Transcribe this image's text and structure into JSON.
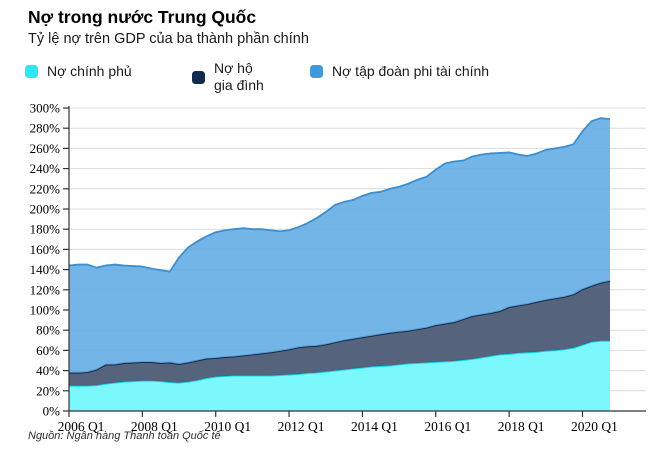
{
  "header": {
    "title": "Nợ trong nước Trung Quốc",
    "subtitle": "Tỷ lệ nợ trên GDP của ba thành phần chính"
  },
  "legend": {
    "items": [
      {
        "label": "Nợ chính phủ",
        "swatch_color": "#2de7f2"
      },
      {
        "label": "Nợ hộ\ngia đình",
        "swatch_color": "#132b4c"
      },
      {
        "label": "Nợ tập đoàn phi tài chính",
        "swatch_color": "#3f9adc"
      }
    ]
  },
  "footer": {
    "source": "Nguồn: Ngân hàng Thanh toán Quốc tế"
  },
  "colors": {
    "grid": "#dcdcdc",
    "axis": "#333333",
    "tick_label": "#000000"
  },
  "chart_data": {
    "type": "area",
    "stacked": true,
    "title": "Nợ trong nước Trung Quốc",
    "subtitle": "Tỷ lệ nợ trên GDP của ba thành phần chính",
    "x_start": "2006 Q1",
    "x_end": "2020 Q4",
    "frequency": "quarterly",
    "x_tick_labels": [
      "2006 Q1",
      "2008 Q1",
      "2010 Q1",
      "2012 Q1",
      "2014 Q1",
      "2016 Q1",
      "2018 Q1",
      "2020 Q1"
    ],
    "y_ticks": [
      0,
      20,
      40,
      60,
      80,
      100,
      120,
      140,
      160,
      180,
      200,
      220,
      240,
      260,
      280,
      300
    ],
    "ylim": [
      0,
      300
    ],
    "y_format": "percent",
    "grid": "horizontal",
    "legend_position": "top",
    "series": [
      {
        "name": "Nợ chính phủ",
        "fill": "#6cf7fb",
        "line": "#0cdcec",
        "values": [
          25,
          25,
          25,
          25.5,
          27,
          28,
          29,
          29.5,
          30,
          30,
          29.5,
          28.5,
          28,
          29,
          30.5,
          32.5,
          34,
          34.5,
          35,
          35,
          35,
          35,
          35,
          35.5,
          36,
          36.5,
          37.5,
          38,
          39,
          40,
          41,
          42,
          43,
          44,
          44.5,
          45,
          46,
          47,
          47.5,
          48,
          48.5,
          49,
          49.5,
          50.5,
          51.5,
          53,
          54.5,
          56,
          56.5,
          57.5,
          58,
          58.5,
          59.5,
          60,
          61,
          62.5,
          65.5,
          68.5,
          69.5,
          69.5
        ]
      },
      {
        "name": "Nợ hộ gia đình",
        "fill": "#4e5d77",
        "line": "#172a4b",
        "values": [
          13,
          13,
          13.5,
          15.5,
          19,
          18,
          18.5,
          18.5,
          18.5,
          18.5,
          18,
          19.5,
          18.5,
          19,
          19.5,
          19.5,
          18.5,
          19,
          19,
          20,
          21,
          22,
          23,
          24,
          25,
          26.5,
          26.5,
          26.5,
          27,
          28,
          29,
          29.5,
          30,
          30.5,
          31.5,
          32.5,
          32.5,
          32.5,
          33.5,
          34.5,
          36.5,
          37.5,
          38.5,
          40.5,
          42.5,
          42.5,
          42.5,
          43,
          46.5,
          47,
          48,
          49.5,
          50.5,
          51.5,
          52,
          53,
          55,
          55.5,
          57.5,
          59.5
        ]
      },
      {
        "name": "Nợ tập đoàn phi tài chính",
        "fill": "#64ade3",
        "line": "#3e8ecd",
        "values": [
          106,
          107,
          106.5,
          101,
          98,
          99,
          96.5,
          95.5,
          94.5,
          92.5,
          92,
          90,
          105.5,
          114,
          118,
          121,
          124.5,
          125.5,
          126,
          126,
          124,
          123,
          121,
          118.5,
          118,
          119,
          122,
          126.5,
          131,
          136,
          137,
          137.5,
          140,
          141.5,
          141,
          142.5,
          143.5,
          145.5,
          148,
          149.5,
          154,
          158.5,
          159,
          157,
          158,
          158.5,
          158,
          156.5,
          153,
          149.5,
          146.5,
          147,
          148.5,
          148.5,
          148.5,
          148.5,
          156.5,
          163,
          163,
          160
        ]
      }
    ]
  }
}
